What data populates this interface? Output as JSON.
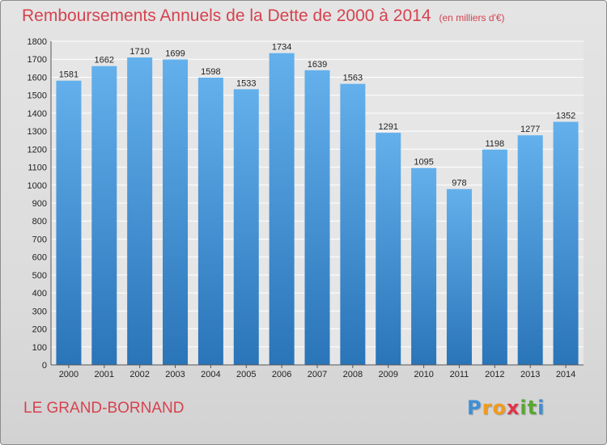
{
  "header": {
    "title": "Remboursements Annuels de la Dette de 2000 à 2014",
    "subtitle": "(en milliers d'€)"
  },
  "footer": {
    "commune": "LE GRAND-BORNAND",
    "logo_letters": [
      "P",
      "r",
      "o",
      "x",
      "i",
      "t",
      "i"
    ],
    "logo_colors": [
      "#3f8fd6",
      "#f19a1e",
      "#f19a1e",
      "#e2334a",
      "#5aa832",
      "#5aa832",
      "#3f8fd6"
    ]
  },
  "chart_data": {
    "type": "bar",
    "categories": [
      "2000",
      "2001",
      "2002",
      "2003",
      "2004",
      "2005",
      "2006",
      "2007",
      "2008",
      "2009",
      "2010",
      "2011",
      "2012",
      "2013",
      "2014"
    ],
    "values": [
      1581,
      1662,
      1710,
      1699,
      1598,
      1533,
      1734,
      1639,
      1563,
      1291,
      1095,
      978,
      1198,
      1277,
      1352
    ],
    "ylim": [
      0,
      1800
    ],
    "yticks": [
      0,
      100,
      200,
      300,
      400,
      500,
      600,
      700,
      800,
      900,
      1000,
      1100,
      1200,
      1300,
      1400,
      1500,
      1600,
      1700,
      1800
    ],
    "grid": true,
    "bar_color_top": "#63b0ec",
    "bar_color_bottom": "#2a74b8"
  }
}
